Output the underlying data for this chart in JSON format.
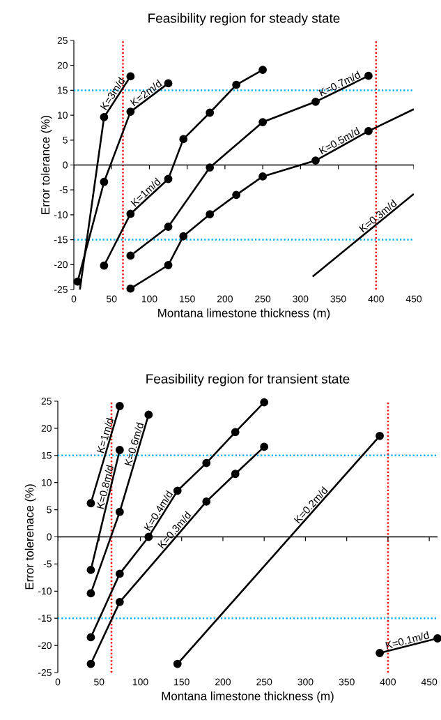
{
  "chart_data": [
    {
      "type": "line",
      "title": "Feasibility region for steady state",
      "xlabel": "Montana limestone thickness (m)",
      "ylabel": "Error tolerance (%)",
      "xlim": [
        0,
        450
      ],
      "ylim": [
        -25,
        25
      ],
      "xticks": [
        0,
        50,
        100,
        150,
        200,
        250,
        300,
        350,
        400,
        450
      ],
      "yticks": [
        -25,
        -20,
        -15,
        -10,
        -5,
        0,
        5,
        10,
        15,
        20,
        25
      ],
      "marker": "circle",
      "line_style": "solid",
      "series": [
        {
          "name": "K=3m/d",
          "color": "#000000",
          "x": [
            40,
            75
          ],
          "values": [
            9.6,
            17.8
          ]
        },
        {
          "color": "#000000",
          "marker": "none",
          "x": [
            8,
            40
          ],
          "values": [
            -25,
            9.6
          ]
        },
        {
          "name": "K=2m/d",
          "color": "#000000",
          "x": [
            5,
            40,
            75,
            125
          ],
          "values": [
            -23.4,
            -3.4,
            10.7,
            16.4
          ]
        },
        {
          "name": "K=1m/d",
          "color": "#000000",
          "x": [
            40,
            75,
            125,
            145,
            180,
            215,
            250
          ],
          "values": [
            -20.2,
            -9.8,
            -2.8,
            5.2,
            10.5,
            16.1,
            19.1
          ]
        },
        {
          "name": "K=0.7m/d",
          "color": "#000000",
          "x": [
            75,
            125,
            180,
            250,
            320,
            390
          ],
          "values": [
            -18.2,
            -12.4,
            -0.5,
            8.6,
            12.7,
            17.9
          ]
        },
        {
          "name": "K=0.5m/d",
          "color": "#000000",
          "x": [
            75,
            125,
            145,
            180,
            215,
            250,
            320,
            390
          ],
          "values": [
            -24.8,
            -20.1,
            -14.3,
            -9.9,
            -6.0,
            -2.3,
            0.9,
            6.8
          ]
        },
        {
          "color": "#000000",
          "marker": "none",
          "x": [
            390,
            450
          ],
          "values": [
            6.8,
            11.2
          ]
        },
        {
          "name": "K=0.3m/d",
          "color": "#000000",
          "marker": "none",
          "x": [
            316,
            450
          ],
          "values": [
            -22.4,
            -5.8
          ]
        }
      ],
      "ref_lines": [
        {
          "axis": "x",
          "value": 65,
          "color": "#ff0000",
          "line_style": "dotted"
        },
        {
          "axis": "x",
          "value": 400,
          "color": "#ff0000",
          "line_style": "dotted"
        },
        {
          "axis": "y",
          "value": 15,
          "color": "#00b0f0",
          "line_style": "dotted"
        },
        {
          "axis": "y",
          "value": -15,
          "color": "#00b0f0",
          "line_style": "dotted"
        }
      ]
    },
    {
      "type": "line",
      "title": "Feasibility region for transient state",
      "xlabel": "Montana limestone thickness (m)",
      "ylabel": "Error tolerenace (%)",
      "xlim": [
        0,
        460
      ],
      "ylim": [
        -25,
        25
      ],
      "xticks": [
        0,
        50,
        100,
        150,
        200,
        250,
        300,
        350,
        400,
        450
      ],
      "yticks": [
        -25,
        -20,
        -15,
        -10,
        -5,
        0,
        5,
        10,
        15,
        20,
        25
      ],
      "marker": "circle",
      "line_style": "solid",
      "series": [
        {
          "name": "K=1m/d",
          "color": "#000000",
          "x": [
            40,
            75
          ],
          "values": [
            6.2,
            24.1
          ]
        },
        {
          "name": "K=0.8m/d",
          "color": "#000000",
          "x": [
            40,
            75
          ],
          "values": [
            -6.1,
            16.0
          ]
        },
        {
          "name": "K=0.6m/d",
          "color": "#000000",
          "x": [
            40,
            75,
            110
          ],
          "values": [
            -10.4,
            4.6,
            22.5
          ]
        },
        {
          "name": "K=0.4m/d",
          "color": "#000000",
          "x": [
            40,
            75,
            110,
            145,
            180,
            215,
            250
          ],
          "values": [
            -18.5,
            -6.8,
            0,
            8.5,
            13.6,
            19.3,
            24.8
          ]
        },
        {
          "name": "K=0.3m/d",
          "color": "#000000",
          "x": [
            40,
            75,
            180,
            215,
            250
          ],
          "values": [
            -23.4,
            -12.0,
            6.5,
            11.6,
            16.6
          ]
        },
        {
          "name": "K=0.2m/d",
          "color": "#000000",
          "x": [
            145,
            390
          ],
          "values": [
            -23.4,
            18.6
          ]
        },
        {
          "name": "K=0.1m/d",
          "color": "#000000",
          "x": [
            390,
            460
          ],
          "values": [
            -21.4,
            -18.7
          ]
        }
      ],
      "ref_lines": [
        {
          "axis": "x",
          "value": 65,
          "color": "#ff0000",
          "line_style": "dotted"
        },
        {
          "axis": "x",
          "value": 400,
          "color": "#ff0000",
          "line_style": "dotted"
        },
        {
          "axis": "y",
          "value": 15,
          "color": "#00b0f0",
          "line_style": "dotted"
        },
        {
          "axis": "y",
          "value": -15,
          "color": "#00b0f0",
          "line_style": "dotted"
        }
      ]
    }
  ]
}
